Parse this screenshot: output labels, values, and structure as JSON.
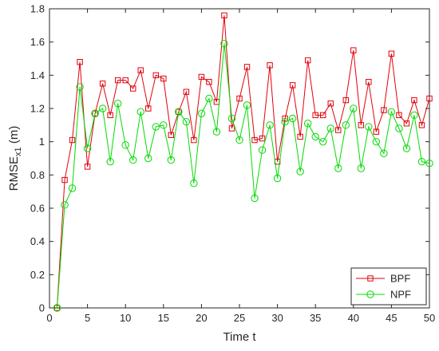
{
  "chart_data": {
    "type": "line",
    "title": "",
    "xlabel": "Time t",
    "ylabel": {
      "main": "RMSE",
      "subscript": "x1",
      "unit": " (m)"
    },
    "xlim": [
      0,
      50
    ],
    "ylim": [
      0,
      1.8
    ],
    "xticks": [
      "0",
      "5",
      "10",
      "15",
      "20",
      "25",
      "30",
      "35",
      "40",
      "45",
      "50"
    ],
    "yticks": [
      "0",
      "0.2",
      "0.4",
      "0.6",
      "0.8",
      "1",
      "1.2",
      "1.4",
      "1.6",
      "1.8"
    ],
    "grid": false,
    "legend_location": "bottom-right",
    "x": [
      1,
      2,
      3,
      4,
      5,
      6,
      7,
      8,
      9,
      10,
      11,
      12,
      13,
      14,
      15,
      16,
      17,
      18,
      19,
      20,
      21,
      22,
      23,
      24,
      25,
      26,
      27,
      28,
      29,
      30,
      31,
      32,
      33,
      34,
      35,
      36,
      37,
      38,
      39,
      40,
      41,
      42,
      43,
      44,
      45,
      46,
      47,
      48,
      49,
      50
    ],
    "series": [
      {
        "name": "BPF",
        "color": "#e3000b",
        "marker": "square",
        "values": [
          0,
          0.77,
          1.01,
          1.48,
          0.85,
          1.17,
          1.35,
          1.16,
          1.37,
          1.37,
          1.32,
          1.43,
          1.2,
          1.4,
          1.38,
          1.04,
          1.18,
          1.3,
          1.01,
          1.39,
          1.36,
          1.24,
          1.76,
          1.08,
          1.26,
          1.45,
          1.01,
          1.02,
          1.46,
          0.88,
          1.14,
          1.34,
          1.03,
          1.49,
          1.16,
          1.16,
          1.23,
          1.07,
          1.25,
          1.55,
          1.1,
          1.36,
          1.06,
          1.19,
          1.53,
          1.16,
          1.11,
          1.25,
          1.1,
          1.26
        ]
      },
      {
        "name": "NPF",
        "color": "#00dc00",
        "marker": "circle",
        "values": [
          0,
          0.62,
          0.72,
          1.33,
          0.96,
          1.17,
          1.2,
          0.88,
          1.23,
          0.98,
          0.89,
          1.18,
          0.9,
          1.09,
          1.1,
          0.89,
          1.18,
          1.12,
          0.75,
          1.17,
          1.26,
          1.06,
          1.59,
          1.14,
          1.01,
          1.22,
          0.66,
          0.95,
          1.1,
          0.78,
          1.12,
          1.14,
          0.82,
          1.11,
          1.03,
          1.0,
          1.08,
          0.84,
          1.1,
          1.2,
          0.84,
          1.09,
          1.0,
          0.93,
          1.18,
          1.08,
          0.96,
          1.16,
          0.88,
          0.87
        ]
      }
    ]
  }
}
